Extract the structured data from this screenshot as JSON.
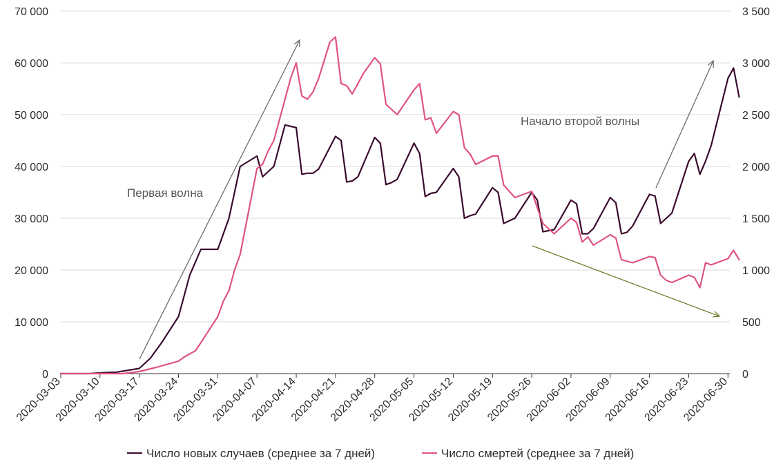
{
  "colors": {
    "cases": "#3a0a2e",
    "deaths": "#e0537f",
    "arrow_gray": "#6b6b6b",
    "arrow_green": "#6b7f2a",
    "grid": "#d9d9d9",
    "axis": "#333333",
    "text": "#2b2b2b"
  },
  "chart_data": {
    "type": "line",
    "title": "",
    "xlabel": "",
    "ylabel": "",
    "ylim": [
      0,
      70000
    ],
    "y2lim": [
      0,
      3500
    ],
    "grid": true,
    "legend_position": "bottom",
    "y_ticks": [
      "0",
      "10 000",
      "20 000",
      "30 000",
      "40 000",
      "50 000",
      "60 000",
      "70 000"
    ],
    "y2_ticks": [
      "0",
      "500",
      "1 000",
      "1 500",
      "2 000",
      "2 500",
      "3 000",
      "3 500"
    ],
    "x_tick_labels": [
      "2020-03-03",
      "2020-03-10",
      "2020-03-17",
      "2020-03-24",
      "2020-03-31",
      "2020-04-07",
      "2020-04-14",
      "2020-04-21",
      "2020-04-28",
      "2020-05-05",
      "2020-05-12",
      "2020-05-19",
      "2020-05-26",
      "2020-06-02",
      "2020-06-09",
      "2020-06-16",
      "2020-06-23",
      "2020-06-30"
    ],
    "x_range": [
      "2020-03-03",
      "2020-07-01"
    ],
    "series": [
      {
        "name": "Число новых случаев (среднее за 7 дней)",
        "axis": "left",
        "x": [
          "2020-03-03",
          "2020-03-08",
          "2020-03-11",
          "2020-03-13",
          "2020-03-17",
          "2020-03-19",
          "2020-03-21",
          "2020-03-24",
          "2020-03-26",
          "2020-03-28",
          "2020-03-31",
          "2020-04-01",
          "2020-04-02",
          "2020-04-04",
          "2020-04-07",
          "2020-04-08",
          "2020-04-09",
          "2020-04-10",
          "2020-04-12",
          "2020-04-14",
          "2020-04-15",
          "2020-04-16",
          "2020-04-17",
          "2020-04-18",
          "2020-04-21",
          "2020-04-22",
          "2020-04-23",
          "2020-04-24",
          "2020-04-25",
          "2020-04-28",
          "2020-04-29",
          "2020-04-30",
          "2020-05-01",
          "2020-05-02",
          "2020-05-05",
          "2020-05-06",
          "2020-05-07",
          "2020-05-08",
          "2020-05-09",
          "2020-05-12",
          "2020-05-13",
          "2020-05-14",
          "2020-05-15",
          "2020-05-16",
          "2020-05-19",
          "2020-05-20",
          "2020-05-21",
          "2020-05-23",
          "2020-05-26",
          "2020-05-27",
          "2020-05-28",
          "2020-05-30",
          "2020-06-02",
          "2020-06-03",
          "2020-06-04",
          "2020-06-05",
          "2020-06-06",
          "2020-06-09",
          "2020-06-10",
          "2020-06-11",
          "2020-06-12",
          "2020-06-13",
          "2020-06-16",
          "2020-06-17",
          "2020-06-18",
          "2020-06-19",
          "2020-06-20",
          "2020-06-23",
          "2020-06-24",
          "2020-06-25",
          "2020-06-26",
          "2020-06-27",
          "2020-06-30",
          "2020-07-01",
          "2020-07-02"
        ],
        "values": [
          0,
          0,
          200,
          300,
          1000,
          3000,
          6000,
          11000,
          19000,
          24000,
          24000,
          27000,
          30000,
          40000,
          42000,
          38000,
          39000,
          40000,
          48000,
          47500,
          38500,
          38700,
          38700,
          39500,
          45800,
          45000,
          37000,
          37200,
          38000,
          45600,
          44500,
          36500,
          36900,
          37500,
          44500,
          42500,
          34200,
          34800,
          35000,
          39600,
          38000,
          30000,
          30500,
          30800,
          35900,
          35000,
          29000,
          30000,
          35000,
          33500,
          27400,
          27800,
          33500,
          32800,
          27000,
          27000,
          28000,
          34000,
          33000,
          27000,
          27300,
          28500,
          34600,
          34300,
          29000,
          30000,
          31000,
          41000,
          42500,
          38500,
          41000,
          44000,
          57000,
          59000,
          53400
        ]
      },
      {
        "name": "Число смертей (среднее за 7 дней)",
        "axis": "right",
        "x": [
          "2020-03-03",
          "2020-03-14",
          "2020-03-17",
          "2020-03-20",
          "2020-03-24",
          "2020-03-25",
          "2020-03-27",
          "2020-03-28",
          "2020-03-31",
          "2020-04-01",
          "2020-04-02",
          "2020-04-03",
          "2020-04-04",
          "2020-04-07",
          "2020-04-08",
          "2020-04-09",
          "2020-04-10",
          "2020-04-11",
          "2020-04-12",
          "2020-04-13",
          "2020-04-14",
          "2020-04-15",
          "2020-04-16",
          "2020-04-17",
          "2020-04-18",
          "2020-04-20",
          "2020-04-21",
          "2020-04-22",
          "2020-04-23",
          "2020-04-24",
          "2020-04-25",
          "2020-04-26",
          "2020-04-28",
          "2020-04-29",
          "2020-04-30",
          "2020-05-01",
          "2020-05-02",
          "2020-05-05",
          "2020-05-06",
          "2020-05-07",
          "2020-05-08",
          "2020-05-09",
          "2020-05-12",
          "2020-05-13",
          "2020-05-14",
          "2020-05-15",
          "2020-05-16",
          "2020-05-19",
          "2020-05-20",
          "2020-05-21",
          "2020-05-23",
          "2020-05-26",
          "2020-05-27",
          "2020-05-28",
          "2020-05-30",
          "2020-06-02",
          "2020-06-03",
          "2020-06-04",
          "2020-06-05",
          "2020-06-06",
          "2020-06-09",
          "2020-06-10",
          "2020-06-11",
          "2020-06-13",
          "2020-06-16",
          "2020-06-17",
          "2020-06-18",
          "2020-06-19",
          "2020-06-20",
          "2020-06-23",
          "2020-06-24",
          "2020-06-25",
          "2020-06-26",
          "2020-06-27",
          "2020-06-30",
          "2020-07-01",
          "2020-07-02"
        ],
        "values": [
          0,
          0,
          20,
          60,
          120,
          160,
          220,
          300,
          550,
          700,
          800,
          1000,
          1150,
          1980,
          2020,
          2150,
          2250,
          2450,
          2650,
          2850,
          3000,
          2680,
          2650,
          2720,
          2850,
          3200,
          3250,
          2800,
          2780,
          2700,
          2800,
          2900,
          3050,
          2990,
          2600,
          2550,
          2500,
          2740,
          2800,
          2450,
          2470,
          2320,
          2530,
          2500,
          2180,
          2120,
          2020,
          2100,
          2100,
          1820,
          1700,
          1760,
          1600,
          1450,
          1350,
          1500,
          1460,
          1270,
          1320,
          1240,
          1340,
          1310,
          1100,
          1070,
          1130,
          1120,
          950,
          900,
          880,
          950,
          930,
          830,
          1070,
          1050,
          1110,
          1190,
          1100
        ]
      }
    ],
    "annotations": [
      {
        "text": "Первая волна"
      },
      {
        "text": "Начало второй волны"
      }
    ]
  },
  "legend": {
    "cases_label": "Число новых случаев (среднее за 7 дней)",
    "deaths_label": "Число смертей (среднее за 7 дней)"
  }
}
